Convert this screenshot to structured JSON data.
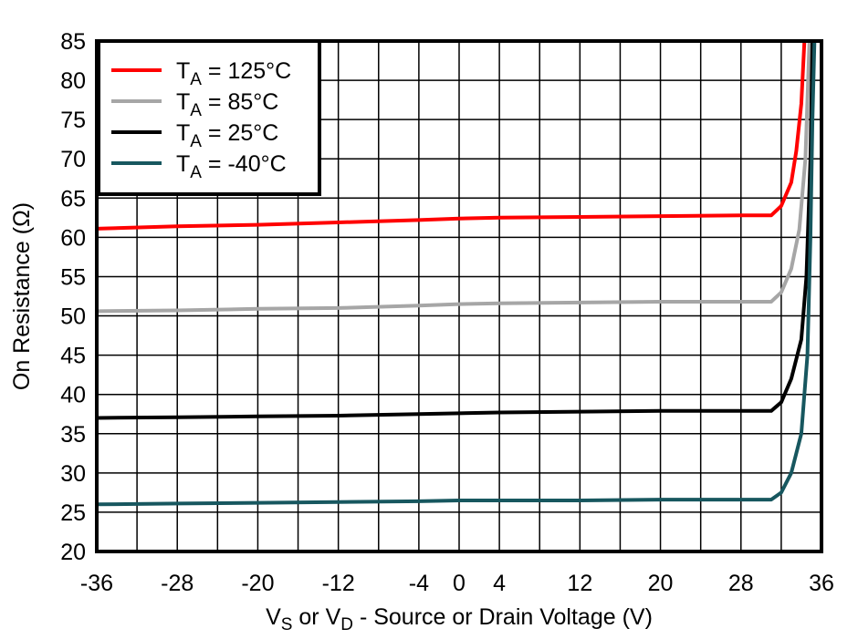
{
  "chart_data": {
    "type": "line",
    "title": "",
    "xlabel": "VS or VD - Source or Drain Voltage (V)",
    "xlabel_parts": {
      "v1": "V",
      "s1": "S",
      "mid": " or ",
      "v2": "V",
      "s2": "D",
      "rest": " - Source or Drain Voltage (V)"
    },
    "ylabel": "On Resistance (Ω)",
    "xlim": [
      -36,
      36
    ],
    "ylim": [
      20,
      85
    ],
    "x_ticks": [
      -36,
      -28,
      -20,
      -12,
      -4,
      0,
      4,
      12,
      20,
      28,
      36
    ],
    "x_grid_step": 4,
    "y_ticks": [
      20,
      25,
      30,
      35,
      40,
      45,
      50,
      55,
      60,
      65,
      70,
      75,
      80,
      85
    ],
    "grid": true,
    "legend_position": "upper-left",
    "series": [
      {
        "name": "TA = 125°C",
        "label_main": "T",
        "label_sub": "A",
        "label_rest": " = 125°C",
        "color": "#ff0000",
        "x": [
          -36,
          -28,
          -20,
          -12,
          -4,
          0,
          4,
          12,
          20,
          28,
          31,
          32,
          33,
          33.5,
          34,
          34.3
        ],
        "y": [
          61.1,
          61.4,
          61.6,
          61.9,
          62.2,
          62.4,
          62.5,
          62.6,
          62.7,
          62.8,
          62.8,
          64,
          67,
          71,
          77,
          85
        ]
      },
      {
        "name": "TA = 85°C",
        "label_main": "T",
        "label_sub": "A",
        "label_rest": " = 85°C",
        "color": "#a6a6a6",
        "x": [
          -36,
          -28,
          -20,
          -12,
          -4,
          0,
          4,
          12,
          20,
          28,
          31,
          32,
          33,
          33.8,
          34.4,
          34.8
        ],
        "y": [
          50.6,
          50.7,
          50.9,
          51.0,
          51.3,
          51.5,
          51.6,
          51.7,
          51.8,
          51.8,
          51.8,
          53,
          56,
          61,
          70,
          85
        ]
      },
      {
        "name": "TA = 25°C",
        "label_main": "T",
        "label_sub": "A",
        "label_rest": " = 25°C",
        "color": "#000000",
        "x": [
          -36,
          -28,
          -20,
          -12,
          -4,
          0,
          4,
          12,
          20,
          28,
          31,
          32,
          33,
          34,
          34.5,
          34.9,
          35.1
        ],
        "y": [
          37.0,
          37.1,
          37.2,
          37.3,
          37.5,
          37.6,
          37.7,
          37.8,
          37.9,
          37.9,
          37.9,
          39,
          42,
          47,
          55,
          70,
          85
        ]
      },
      {
        "name": "TA = -40°C",
        "label_main": "T",
        "label_sub": "A",
        "label_rest": " = -40°C",
        "color": "#17575f",
        "x": [
          -36,
          -28,
          -20,
          -12,
          -4,
          0,
          4,
          12,
          20,
          28,
          31,
          32,
          33,
          34,
          34.6,
          34.9,
          35.1,
          35.3
        ],
        "y": [
          26.0,
          26.1,
          26.2,
          26.3,
          26.4,
          26.5,
          26.5,
          26.5,
          26.6,
          26.6,
          26.6,
          27.5,
          30,
          35,
          45,
          60,
          75,
          85
        ]
      }
    ]
  }
}
